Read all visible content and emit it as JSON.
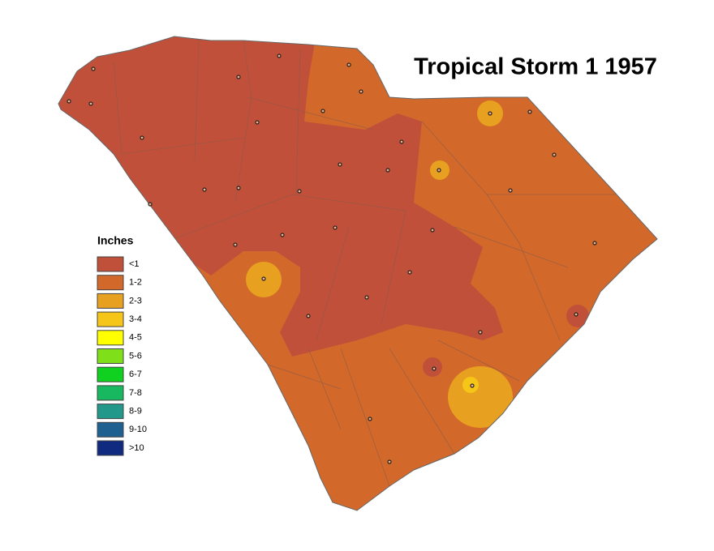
{
  "title": "Tropical Storm 1 1957",
  "legend": {
    "title": "Inches",
    "items": [
      {
        "label": "<1",
        "color": "#c1503a"
      },
      {
        "label": "1-2",
        "color": "#d2692a"
      },
      {
        "label": "2-3",
        "color": "#e8a020"
      },
      {
        "label": "3-4",
        "color": "#f5c518"
      },
      {
        "label": "4-5",
        "color": "#ffff00"
      },
      {
        "label": "5-6",
        "color": "#7fe01a"
      },
      {
        "label": "6-7",
        "color": "#10d020"
      },
      {
        "label": "7-8",
        "color": "#18b860"
      },
      {
        "label": "8-9",
        "color": "#22988a"
      },
      {
        "label": "9-10",
        "color": "#1e6090"
      },
      {
        "label": ">10",
        "color": "#102a80"
      }
    ]
  }
}
